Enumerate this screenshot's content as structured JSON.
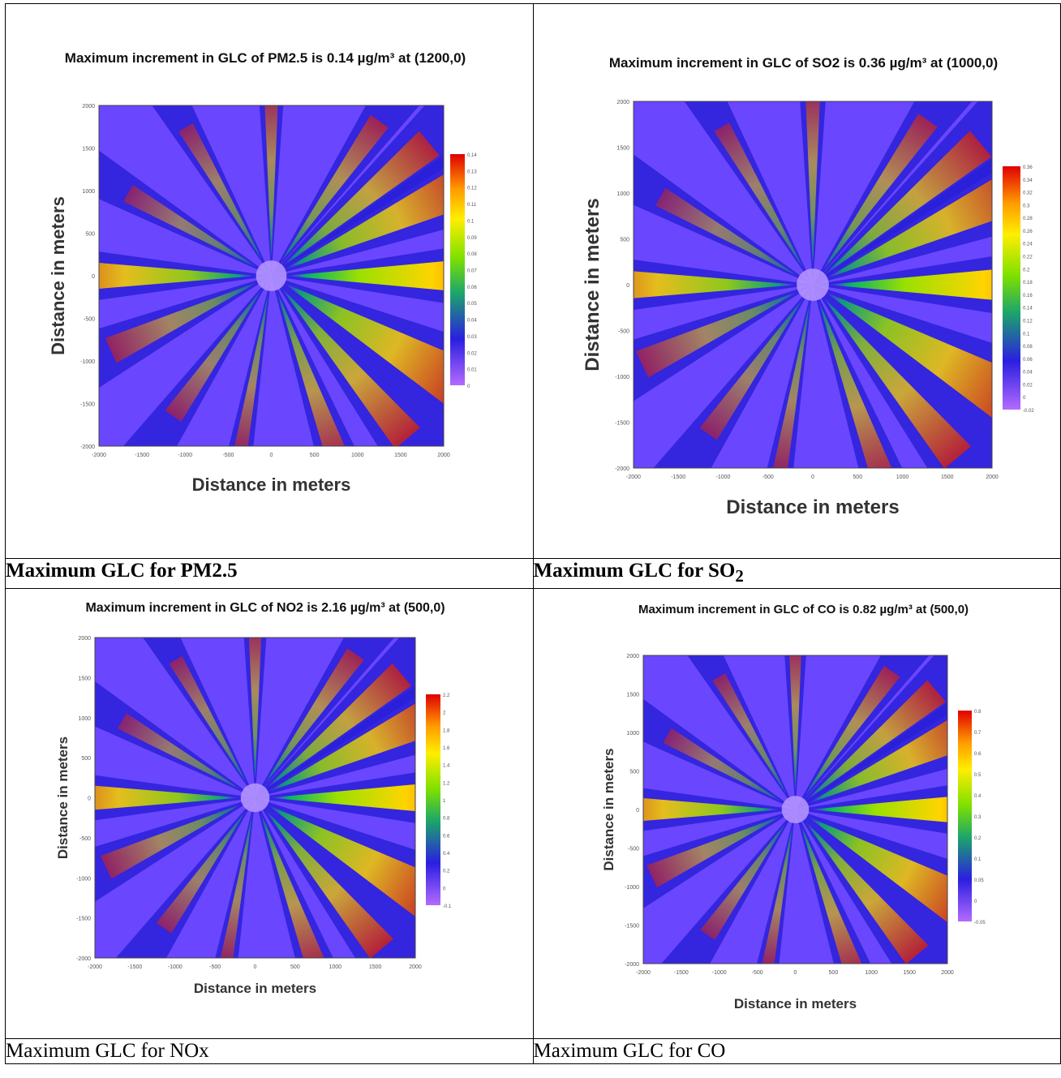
{
  "panels": [
    {
      "caption": "Maximum GLC for PM2.5",
      "caption_bold": true,
      "chart_data": {
        "type": "heatmap",
        "title": "Maximum increment in GLC of PM2.5 is 0.14 µg/m³ at (1200,0)",
        "xlabel": "Distance in meters",
        "ylabel": "Distance in meters",
        "xlim": [
          -2000,
          2000
        ],
        "ylim": [
          -2000,
          2000
        ],
        "x_ticks": [
          -2000,
          -1500,
          -1000,
          -500,
          0,
          500,
          1000,
          1500,
          2000
        ],
        "y_ticks": [
          -2000,
          -1500,
          -1000,
          -500,
          0,
          500,
          1000,
          1500,
          2000
        ],
        "colorbar_ticks": [
          0.14,
          0.13,
          0.12,
          0.11,
          0.1,
          0.09,
          0.08,
          0.07,
          0.06,
          0.05,
          0.04,
          0.03,
          0.02,
          0.01,
          0.0
        ],
        "max_value": 0.14,
        "max_location": [
          1200,
          0
        ]
      }
    },
    {
      "caption": "Maximum GLC for SO",
      "caption_sub": "2",
      "caption_bold": true,
      "chart_data": {
        "type": "heatmap",
        "title": "Maximum increment in GLC of SO2 is 0.36 µg/m³ at (1000,0)",
        "xlabel": "Distance in meters",
        "ylabel": "Distance in meters",
        "xlim": [
          -2000,
          2000
        ],
        "ylim": [
          -2000,
          2000
        ],
        "x_ticks": [
          -2000,
          -1500,
          -1000,
          -500,
          0,
          500,
          1000,
          1500,
          2000
        ],
        "y_ticks": [
          -2000,
          -1500,
          -1000,
          -500,
          0,
          500,
          1000,
          1500,
          2000
        ],
        "colorbar_ticks": [
          0.36,
          0.34,
          0.32,
          0.3,
          0.28,
          0.26,
          0.24,
          0.22,
          0.2,
          0.18,
          0.16,
          0.14,
          0.12,
          0.1,
          0.08,
          0.06,
          0.04,
          0.02,
          0,
          -0.02
        ],
        "max_value": 0.36,
        "max_location": [
          1000,
          0
        ]
      }
    },
    {
      "caption": "Maximum GLC for NOx",
      "caption_bold": false,
      "chart_data": {
        "type": "heatmap",
        "title": "Maximum increment in GLC of NO2 is 2.16 µg/m³ at (500,0)",
        "xlabel": "Distance in meters",
        "ylabel": "Distance in meters",
        "xlim": [
          -2000,
          2000
        ],
        "ylim": [
          -2000,
          2000
        ],
        "x_ticks": [
          -2000,
          -1500,
          -1000,
          -500,
          0,
          500,
          1000,
          1500,
          2000
        ],
        "y_ticks": [
          -2000,
          -1500,
          -1000,
          -500,
          0,
          500,
          1000,
          1500,
          2000
        ],
        "colorbar_ticks": [
          2.2,
          2,
          1.8,
          1.6,
          1.4,
          1.2,
          1,
          0.8,
          0.6,
          0.4,
          0.2,
          0,
          -0.1
        ],
        "max_value": 2.16,
        "max_location": [
          500,
          0
        ]
      }
    },
    {
      "caption": "Maximum GLC for CO",
      "caption_bold": false,
      "chart_data": {
        "type": "heatmap",
        "title": "Maximum increment in GLC of CO is 0.82 µg/m³ at (500,0)",
        "xlabel": "Distance in meters",
        "ylabel": "Distance in meters",
        "xlim": [
          -2000,
          2000
        ],
        "ylim": [
          -2000,
          2000
        ],
        "x_ticks": [
          -2000,
          -1500,
          -1000,
          -500,
          0,
          500,
          1000,
          1500,
          2000
        ],
        "y_ticks": [
          -2000,
          -1500,
          -1000,
          -500,
          0,
          500,
          1000,
          1500,
          2000
        ],
        "colorbar_ticks": [
          0.8,
          0.7,
          0.6,
          0.5,
          0.4,
          0.3,
          0.2,
          0.1,
          0.05,
          0,
          -0.05
        ],
        "max_value": 0.82,
        "max_location": [
          500,
          0
        ]
      }
    }
  ]
}
